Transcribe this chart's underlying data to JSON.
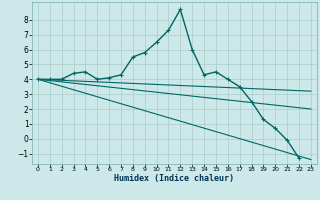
{
  "xlabel": "Humidex (Indice chaleur)",
  "background_color": "#cce8e8",
  "line_color": "#006666",
  "grid_color": "#aacccc",
  "xlim": [
    -0.5,
    23.5
  ],
  "ylim": [
    -1.7,
    9.2
  ],
  "yticks": [
    -1,
    0,
    1,
    2,
    3,
    4,
    5,
    6,
    7,
    8
  ],
  "xticks": [
    0,
    1,
    2,
    3,
    4,
    5,
    6,
    7,
    8,
    9,
    10,
    11,
    12,
    13,
    14,
    15,
    16,
    17,
    18,
    19,
    20,
    21,
    22,
    23
  ],
  "main_series": {
    "x": [
      0,
      1,
      2,
      3,
      4,
      5,
      6,
      7,
      8,
      9,
      10,
      11,
      12,
      13,
      14,
      15,
      16,
      17,
      18,
      19,
      20,
      21,
      22
    ],
    "y": [
      4.0,
      4.0,
      4.0,
      4.4,
      4.5,
      4.0,
      4.1,
      4.3,
      5.5,
      5.8,
      6.5,
      7.3,
      8.7,
      6.0,
      4.3,
      4.5,
      4.0,
      3.5,
      2.5,
      1.3,
      0.7,
      -0.1,
      -1.3
    ]
  },
  "straight_lines": [
    {
      "x": [
        0,
        23
      ],
      "y": [
        4.0,
        -1.4
      ]
    },
    {
      "x": [
        0,
        23
      ],
      "y": [
        4.0,
        3.2
      ]
    },
    {
      "x": [
        0,
        23
      ],
      "y": [
        4.0,
        2.0
      ]
    }
  ]
}
